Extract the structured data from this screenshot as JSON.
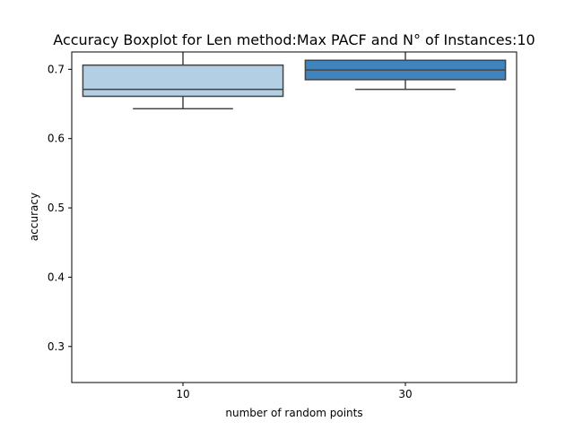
{
  "chart_data": {
    "type": "box",
    "title": "Accuracy Boxplot for Len method:Max PACF and N° of Instances:10",
    "xlabel": "number of random points",
    "ylabel": "accuracy",
    "categories": [
      "10",
      "30"
    ],
    "ylim": [
      0.248,
      0.725
    ],
    "yticks": [
      0.3,
      0.4,
      0.5,
      0.6,
      0.7
    ],
    "ytick_labels": [
      "0.3",
      "0.4",
      "0.5",
      "0.6",
      "0.7"
    ],
    "grid": false,
    "boxes": [
      {
        "category": "10",
        "whisker_low": 0.643,
        "q1": 0.661,
        "median": 0.671,
        "q3": 0.706,
        "whisker_high": 0.725,
        "color": "#b3cfe3"
      },
      {
        "category": "30",
        "whisker_low": 0.671,
        "q1": 0.685,
        "median": 0.699,
        "q3": 0.713,
        "whisker_high": 0.725,
        "color": "#3f84bd"
      }
    ]
  }
}
